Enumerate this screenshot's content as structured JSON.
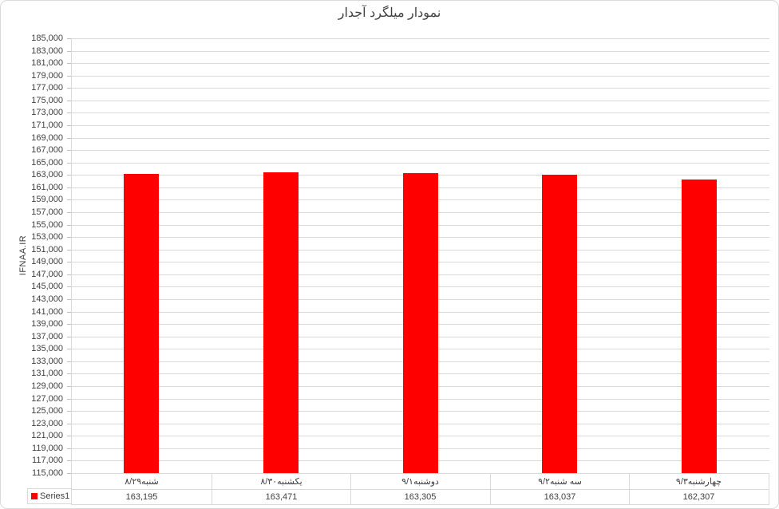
{
  "chart_data": {
    "type": "bar",
    "title": "نمودار میلگرد آجدار",
    "xlabel": "",
    "ylabel": "IFNAA.IR",
    "categories": [
      "شنبه۸/۲۹",
      "یکشنبه۸/۳۰",
      "دوشنبه۹/۱",
      "سه شنبه۹/۲",
      "چهارشنبه۹/۳"
    ],
    "series": [
      {
        "name": "Series1",
        "color": "#FF0000",
        "values": [
          163195,
          163471,
          163305,
          163037,
          162307
        ]
      }
    ],
    "value_labels": [
      "163,195",
      "163,471",
      "163,305",
      "163,037",
      "162,307"
    ],
    "ylim": [
      115000,
      185000
    ],
    "ytick_step": 2000,
    "ytick_labels": [
      "185,000",
      "183,000",
      "181,000",
      "179,000",
      "177,000",
      "175,000",
      "173,000",
      "171,000",
      "169,000",
      "167,000",
      "165,000",
      "163,000",
      "161,000",
      "159,000",
      "157,000",
      "155,000",
      "153,000",
      "151,000",
      "149,000",
      "147,000",
      "145,000",
      "143,000",
      "141,000",
      "139,000",
      "137,000",
      "135,000",
      "133,000",
      "131,000",
      "129,000",
      "127,000",
      "125,000",
      "123,000",
      "121,000",
      "119,000",
      "117,000",
      "115,000"
    ],
    "grid": true,
    "legend_position": "data-table-bottom-left",
    "colors": {
      "bar": "#FF0000",
      "grid": "#D9D9D9",
      "border": "#D9D9D9",
      "text": "#3F3F3F",
      "background": "#FFFFFF"
    }
  }
}
